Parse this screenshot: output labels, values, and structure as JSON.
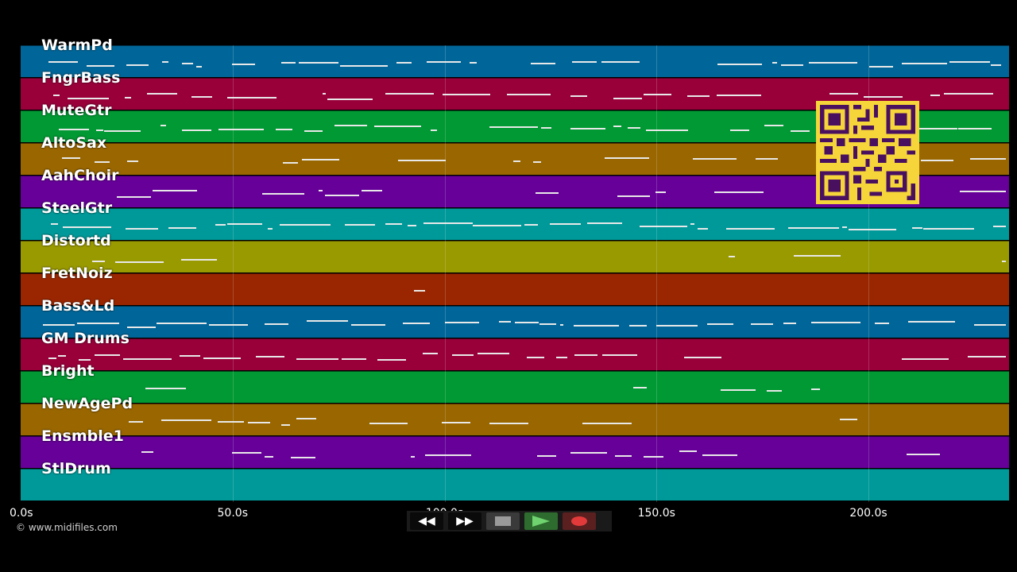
{
  "tracks": [
    {
      "label": "WarmPd",
      "color": "#006699"
    },
    {
      "label": "FngrBass",
      "color": "#99003a"
    },
    {
      "label": "MuteGtr",
      "color": "#009933"
    },
    {
      "label": "AltoSax",
      "color": "#996600"
    },
    {
      "label": "AahChoir",
      "color": "#660099"
    },
    {
      "label": "SteelGtr",
      "color": "#009999"
    },
    {
      "label": "Distortd",
      "color": "#999900"
    },
    {
      "label": "FretNoiz",
      "color": "#992600"
    },
    {
      "label": "Bass&Ld",
      "color": "#006699"
    },
    {
      "label": "GM Drums",
      "color": "#99003a"
    },
    {
      "label": "Bright",
      "color": "#009933"
    },
    {
      "label": "NewAgePd",
      "color": "#996600"
    },
    {
      "label": "Ensmble1",
      "color": "#660099"
    },
    {
      "label": "StlDrum",
      "color": "#009999"
    }
  ],
  "timeline": {
    "ticks": [
      "0.0s",
      "50.0s",
      "100.0s",
      "150.0s",
      "200.0s"
    ]
  },
  "copyright": "© www.midifiles.com",
  "transport": {
    "rewind_icon": "rewind-icon",
    "forward_icon": "fast-forward-icon",
    "stop_icon": "stop-icon",
    "play_icon": "play-icon",
    "record_icon": "record-icon"
  },
  "qr_icon": "qr-code-icon"
}
